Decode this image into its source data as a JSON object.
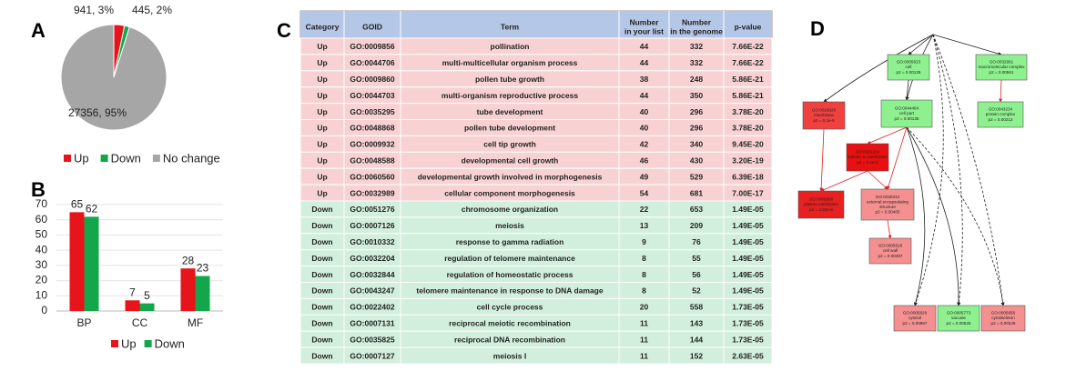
{
  "panel_labels": [
    "A",
    "B",
    "C",
    "D"
  ],
  "chart_data": [
    {
      "type": "pie",
      "categories": [
        "Up",
        "Down",
        "No change"
      ],
      "values": [
        941,
        445,
        27356
      ],
      "value_labels": [
        "941, 3%",
        "445, 2%",
        "27356, 95%"
      ],
      "colors": [
        "#e8141b",
        "#14a64a",
        "#a6a6a6"
      ]
    },
    {
      "type": "bar",
      "categories": [
        "BP",
        "CC",
        "MF"
      ],
      "series": [
        {
          "name": "Up",
          "color": "#e8141b",
          "values": [
            65,
            7,
            28
          ]
        },
        {
          "name": "Down",
          "color": "#14a64a",
          "values": [
            62,
            5,
            23
          ]
        }
      ],
      "ylim": [
        0,
        70
      ],
      "yticks": [
        0,
        10,
        20,
        30,
        40,
        50,
        60,
        70
      ],
      "grid": true
    }
  ],
  "table": {
    "columns": [
      [
        "Category"
      ],
      [
        "GOID"
      ],
      [
        "Term"
      ],
      [
        "Number",
        "in your list"
      ],
      [
        "Number",
        "in the genome"
      ],
      [
        "p-value"
      ]
    ],
    "header_color": "#b4c7e7",
    "row_colors": {
      "Up": "#f8d2d2",
      "Down": "#d2eedc"
    },
    "rows": [
      [
        "Up",
        "GO:0009856",
        "pollination",
        44,
        332,
        "7.66E-22"
      ],
      [
        "Up",
        "GO:0044706",
        "multi-multicellular organism process",
        44,
        332,
        "7.66E-22"
      ],
      [
        "Up",
        "GO:0009860",
        "pollen tube growth",
        38,
        248,
        "5.86E-21"
      ],
      [
        "Up",
        "GO:0044703",
        "multi-organism reproductive process",
        44,
        350,
        "5.86E-21"
      ],
      [
        "Up",
        "GO:0035295",
        "tube development",
        40,
        296,
        "3.78E-20"
      ],
      [
        "Up",
        "GO:0048868",
        "pollen tube development",
        40,
        296,
        "3.78E-20"
      ],
      [
        "Up",
        "GO:0009932",
        "cell tip growth",
        42,
        340,
        "9.45E-20"
      ],
      [
        "Up",
        "GO:0048588",
        "developmental cell growth",
        46,
        430,
        "3.20E-19"
      ],
      [
        "Up",
        "GO:0060560",
        "developmental growth involved in morphogenesis",
        49,
        529,
        "6.39E-18"
      ],
      [
        "Up",
        "GO:0032989",
        "cellular component morphogenesis",
        54,
        681,
        "7.00E-17"
      ],
      [
        "Down",
        "GO:0051276",
        "chromosome organization",
        22,
        653,
        "1.49E-05"
      ],
      [
        "Down",
        "GO:0007126",
        "meiosis",
        13,
        209,
        "1.49E-05"
      ],
      [
        "Down",
        "GO:0010332",
        "response to gamma radiation",
        9,
        76,
        "1.49E-05"
      ],
      [
        "Down",
        "GO:0032204",
        "regulation of telomere maintenance",
        8,
        55,
        "1.49E-05"
      ],
      [
        "Down",
        "GO:0032844",
        "regulation of homeostatic process",
        8,
        56,
        "1.49E-05"
      ],
      [
        "Down",
        "GO:0043247",
        "telomere maintenance in response to DNA damage",
        8,
        52,
        "1.49E-05"
      ],
      [
        "Down",
        "GO:0022402",
        "cell cycle process",
        20,
        558,
        "1.73E-05"
      ],
      [
        "Down",
        "GO:0007131",
        "reciprocal meiotic recombination",
        11,
        143,
        "1.73E-05"
      ],
      [
        "Down",
        "GO:0035825",
        "reciprocal DNA recombination",
        11,
        144,
        "1.73E-05"
      ],
      [
        "Down",
        "GO:0007127",
        "meiosis I",
        11,
        152,
        "2.63E-05"
      ]
    ]
  },
  "diagram": {
    "nodes": [
      {
        "lines": [
          "GO:0005623",
          "cell",
          "p2 = 0.00135"
        ],
        "color": "#8ef08e"
      },
      {
        "lines": [
          "GO:0032991",
          "macromolecular complex",
          "p2 = 0.00561"
        ],
        "color": "#8ef08e"
      },
      {
        "lines": [
          "GO:0016020",
          "membrane",
          "p2 = 0.1e-5"
        ],
        "color": "#f04040"
      },
      {
        "lines": [
          "GO:0044464",
          "cell part",
          "p2 = 0.00135"
        ],
        "color": "#8ef08e"
      },
      {
        "lines": [
          "GO:0043234",
          "protein complex",
          "p2 = 0.00213"
        ],
        "color": "#8ef08e"
      },
      {
        "lines": [
          "GO:0031224",
          "intrinsic to membrane",
          "p2 = 0.1e-5"
        ],
        "color": "#e81010"
      },
      {
        "lines": [
          "GO:0005886",
          "plasma membrane",
          "p2 = 4.22e-6"
        ],
        "color": "#e82020"
      },
      {
        "lines": [
          "GO:0030312",
          "external encapsulating",
          "structure",
          "p2 = 0.00405"
        ],
        "color": "#f49090"
      },
      {
        "lines": [
          "GO:0005618",
          "cell wall",
          "p2 = 0.00397"
        ],
        "color": "#f49090"
      },
      {
        "lines": [
          "GO:0005829",
          "cytosol",
          "p2 = 0.00967"
        ],
        "color": "#f49090"
      },
      {
        "lines": [
          "GO:0005773",
          "vacuole",
          "p2 = 0.00625"
        ],
        "color": "#8ef08e"
      },
      {
        "lines": [
          "GO:0005856",
          "cytoskeleton",
          "p2 = 0.00249"
        ],
        "color": "#f49090"
      }
    ]
  }
}
